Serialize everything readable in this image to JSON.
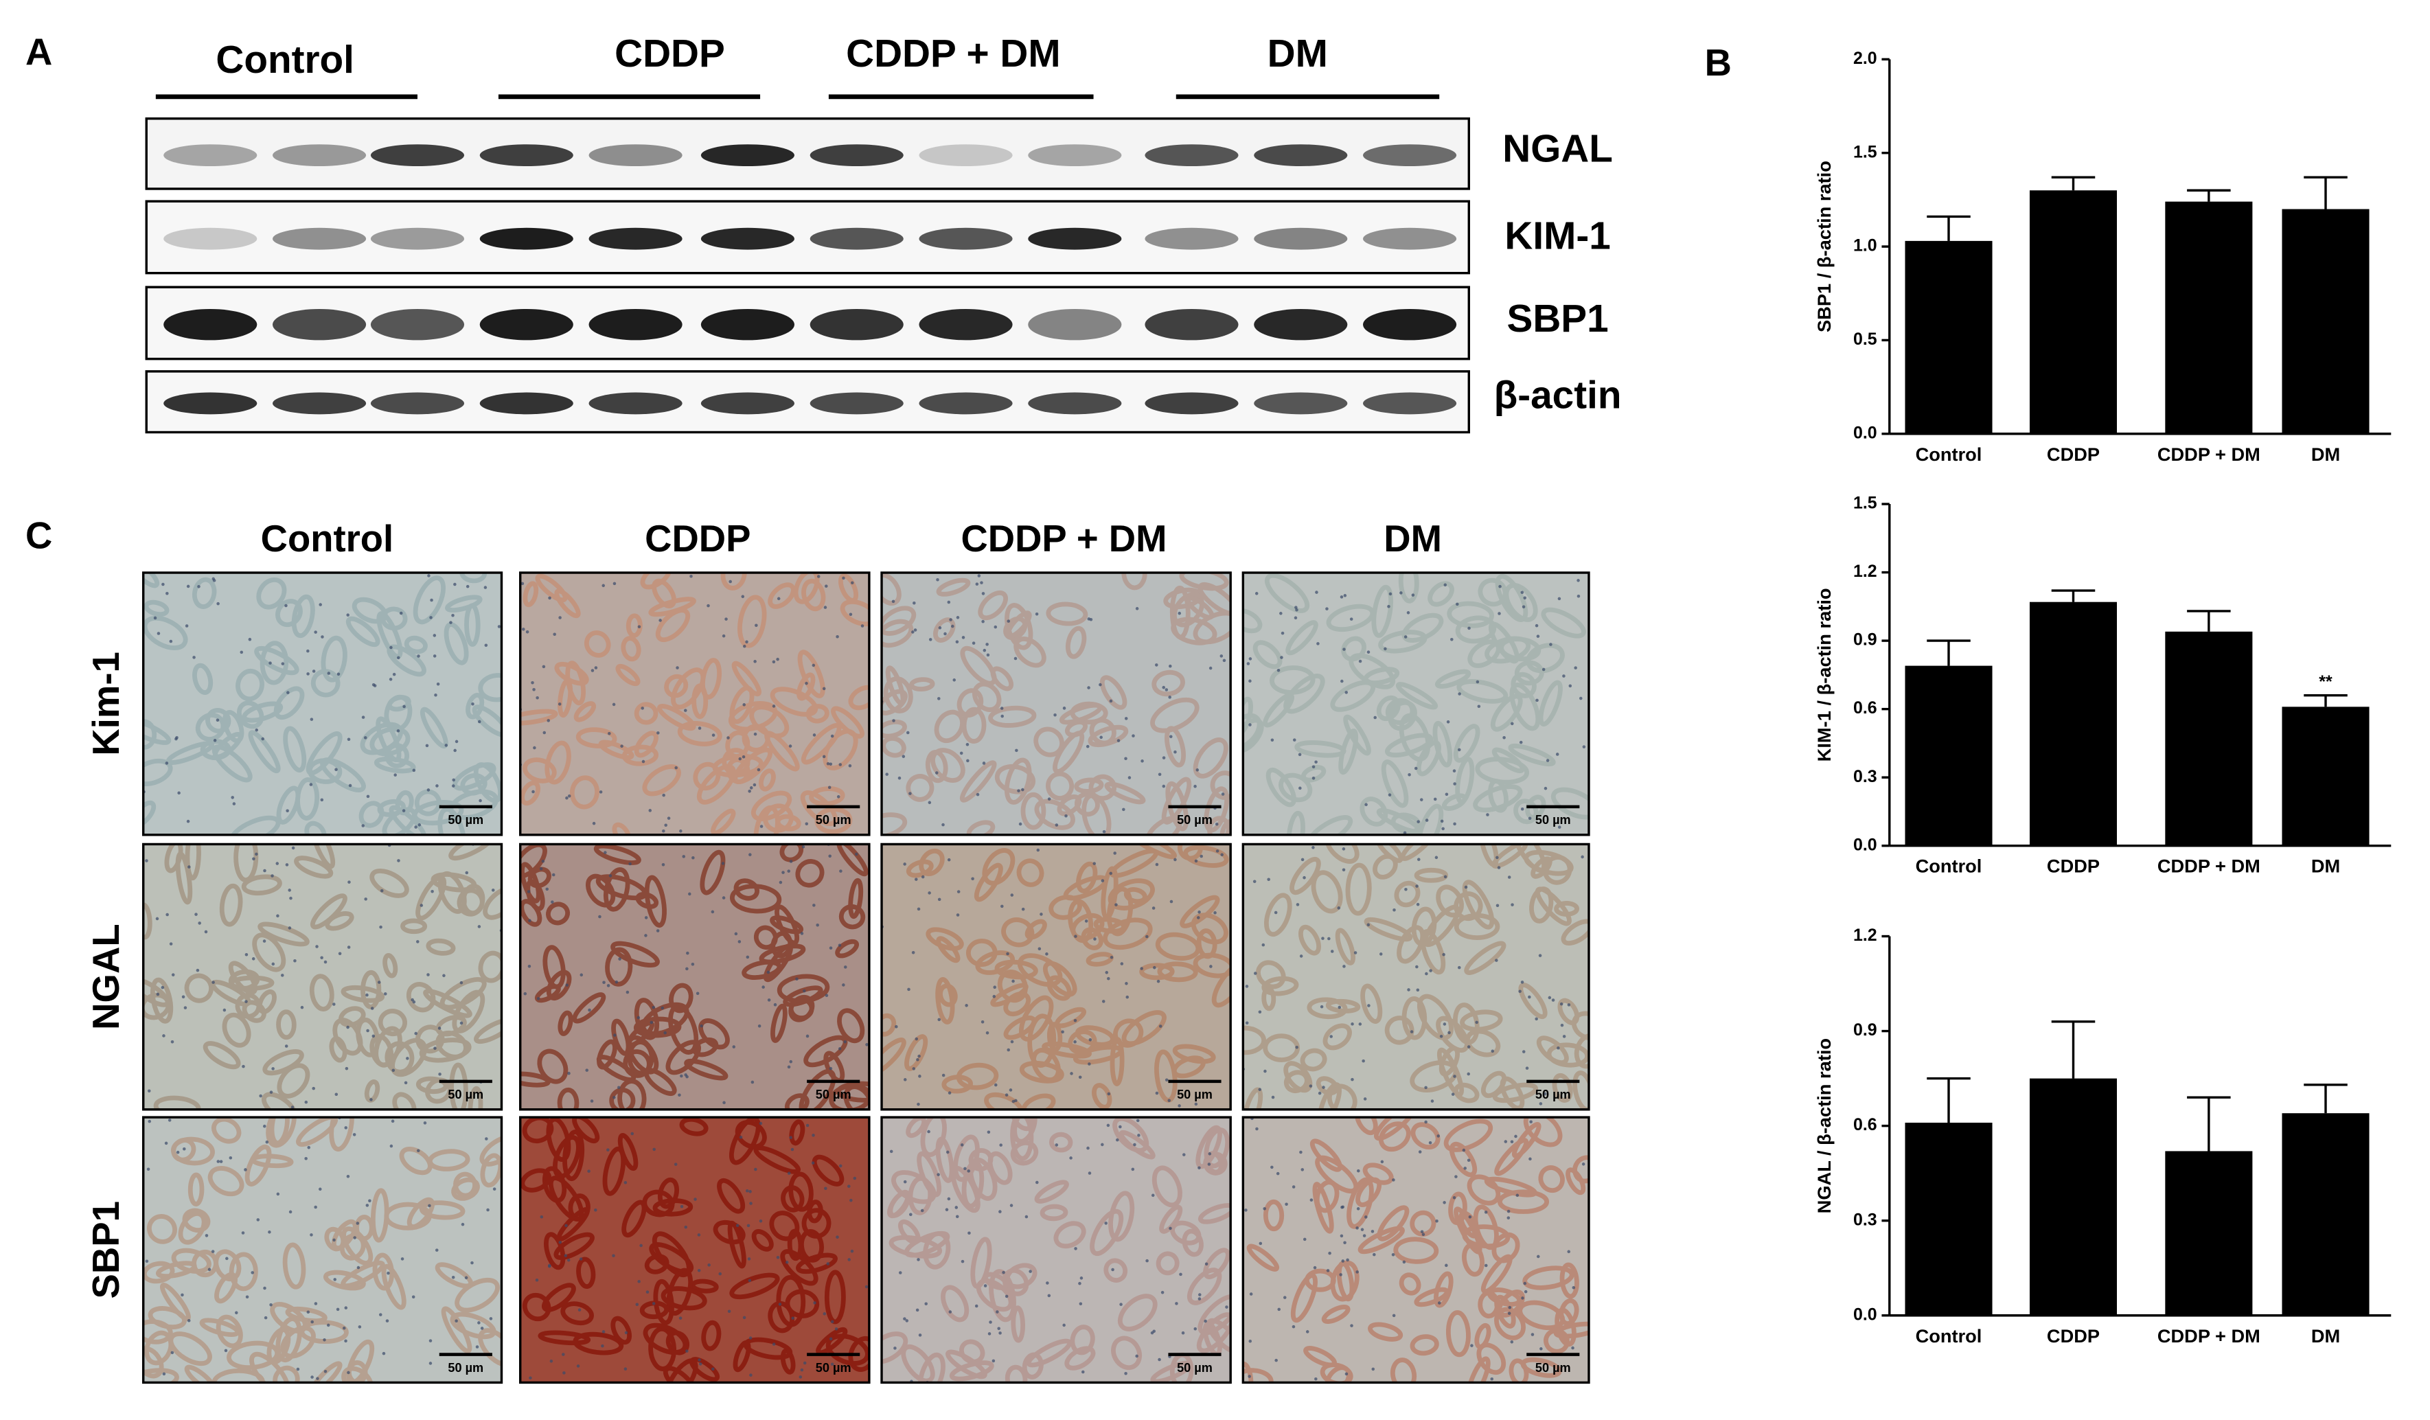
{
  "figure": {
    "panel_labels": [
      "A",
      "B",
      "C"
    ],
    "blot_groups": [
      "Control",
      "CDDP",
      "CDDP + DM",
      "DM"
    ],
    "blot_rows": [
      "NGAL",
      "KIM-1",
      "SBP1",
      "β-actin"
    ],
    "ihc_columns": [
      "Control",
      "CDDP",
      "CDDP + DM",
      "DM"
    ],
    "ihc_rows": [
      "Kim-1",
      "NGAL",
      "SBP1"
    ],
    "scale_bars": [
      "50 µm",
      "50 µm",
      "50 µm",
      "50 µm",
      "50 µm",
      "50 µm",
      "50 µm",
      "50 µm",
      "50 µm",
      "50 µm",
      "50 µm",
      "50 µm"
    ]
  },
  "chart_data": [
    {
      "type": "bar",
      "ylabel": "SBP1 / β-actin ratio",
      "color": "#000000",
      "categories": [
        "Control",
        "CDDP",
        "CDDP + DM",
        "DM"
      ],
      "values": [
        1.03,
        1.3,
        1.24,
        1.2
      ],
      "errors": [
        0.13,
        0.07,
        0.06,
        0.17
      ],
      "ylim": [
        0,
        2
      ],
      "yticks": [
        {
          "value": 0,
          "label": "0.0"
        },
        0.5,
        {
          "value": 1,
          "label": "1.0"
        },
        1.5,
        {
          "value": 2,
          "label": "2.0"
        }
      ]
    },
    {
      "type": "bar",
      "ylabel": "KIM-1 / β-actin ratio",
      "color": "#000000",
      "categories": [
        "Control",
        "CDDP",
        "CDDP + DM",
        "DM"
      ],
      "values": [
        0.79,
        1.07,
        0.94,
        0.61
      ],
      "errors": [
        0.11,
        0.05,
        0.09,
        0.05
      ],
      "significance": [
        null,
        null,
        null,
        "**"
      ],
      "ylim": [
        0,
        1.5
      ],
      "yticks": [
        {
          "value": 0,
          "label": "0.0"
        },
        0.3,
        0.6,
        0.9,
        1.2,
        1.5
      ]
    },
    {
      "type": "bar",
      "ylabel": "NGAL / β-actin ratio",
      "color": "#000000",
      "categories": [
        "Control",
        "CDDP",
        "CDDP + DM",
        "DM"
      ],
      "values": [
        0.61,
        0.75,
        0.52,
        0.64
      ],
      "errors": [
        0.14,
        0.18,
        0.17,
        0.09
      ],
      "ylim": [
        0,
        1.2
      ],
      "yticks": [
        {
          "value": 0,
          "label": "0.0"
        },
        0.3,
        0.6,
        0.9,
        1.2
      ]
    }
  ]
}
